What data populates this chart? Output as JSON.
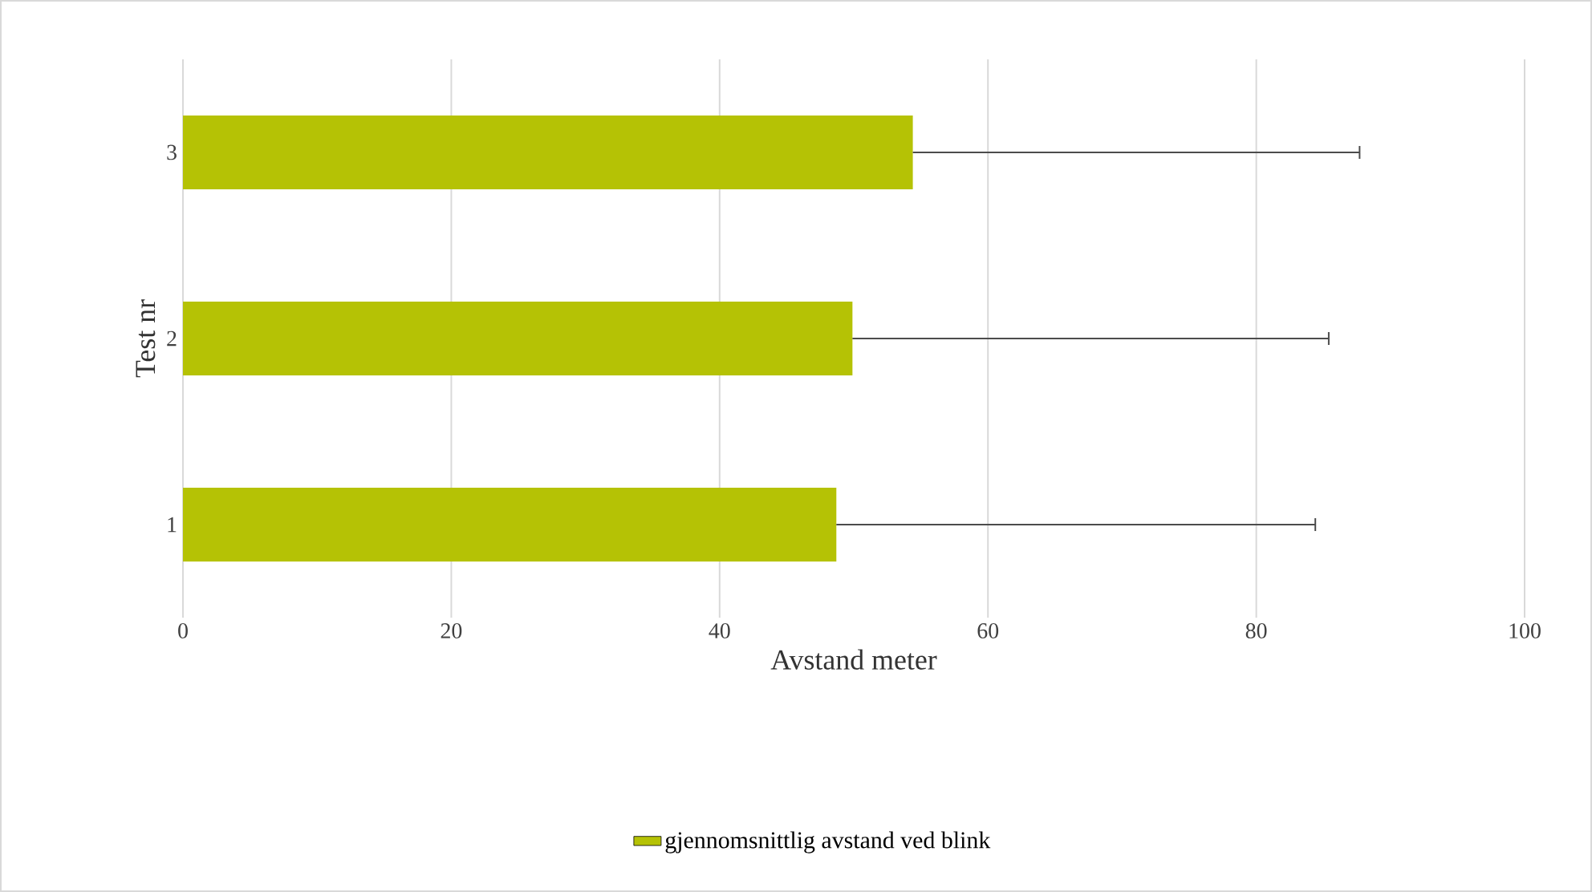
{
  "chart_data": {
    "type": "bar",
    "orientation": "horizontal",
    "xlabel": "Avstand meter",
    "ylabel": "Test nr",
    "categories": [
      "3",
      "2",
      "1"
    ],
    "series": [
      {
        "name": "gjennomsnittlig avstand ved blink",
        "color": "#b5c205",
        "values": [
          54.4,
          49.9,
          48.7
        ],
        "errors": [
          [
            54.4,
            87.7
          ],
          [
            49.9,
            85.4
          ],
          [
            48.7,
            84.4
          ]
        ]
      }
    ],
    "xlim": [
      0,
      100
    ],
    "xticks": [
      0,
      20,
      40,
      60,
      80,
      100
    ],
    "grid": "x",
    "legend": "bottom"
  }
}
